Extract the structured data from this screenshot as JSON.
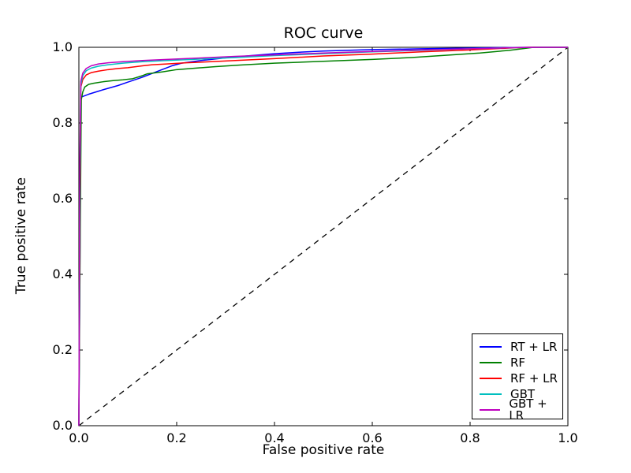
{
  "chart_data": {
    "type": "line",
    "title": "ROC curve",
    "xlabel": "False positive rate",
    "ylabel": "True positive rate",
    "xlim": [
      0.0,
      1.0
    ],
    "ylim": [
      0.0,
      1.0
    ],
    "grid": false,
    "legend_position": "lower right",
    "xticks": {
      "values": [
        0.0,
        0.2,
        0.4,
        0.6,
        0.8,
        1.0
      ],
      "labels": [
        "0.0",
        "0.2",
        "0.4",
        "0.6",
        "0.8",
        "1.0"
      ]
    },
    "yticks": {
      "values": [
        0.0,
        0.2,
        0.4,
        0.6,
        0.8,
        1.0
      ],
      "labels": [
        "0.0",
        "0.2",
        "0.4",
        "0.6",
        "0.8",
        "1.0"
      ]
    },
    "reference_line": {
      "name": "chance diagonal",
      "style": "dashed",
      "color": "#000000",
      "points": [
        [
          0.0,
          0.0
        ],
        [
          1.0,
          1.0
        ]
      ]
    },
    "series": [
      {
        "name": "RT + LR",
        "color": "#0000ff",
        "points": [
          [
            0,
            0
          ],
          [
            0.003,
            0.62
          ],
          [
            0.004,
            0.868
          ],
          [
            0.02,
            0.876
          ],
          [
            0.05,
            0.888
          ],
          [
            0.08,
            0.899
          ],
          [
            0.1,
            0.908
          ],
          [
            0.13,
            0.921
          ],
          [
            0.16,
            0.936
          ],
          [
            0.19,
            0.951
          ],
          [
            0.21,
            0.958
          ],
          [
            0.25,
            0.965
          ],
          [
            0.3,
            0.972
          ],
          [
            0.35,
            0.978
          ],
          [
            0.4,
            0.983
          ],
          [
            0.45,
            0.987
          ],
          [
            0.5,
            0.99
          ],
          [
            0.6,
            0.994
          ],
          [
            0.7,
            0.996
          ],
          [
            0.8,
            0.998
          ],
          [
            0.9,
            0.9997
          ],
          [
            0.93,
            1.0
          ],
          [
            1.0,
            1.0
          ]
        ]
      },
      {
        "name": "RF",
        "color": "#008000",
        "points": [
          [
            0,
            0
          ],
          [
            0.003,
            0.55
          ],
          [
            0.005,
            0.862
          ],
          [
            0.008,
            0.882
          ],
          [
            0.012,
            0.895
          ],
          [
            0.02,
            0.902
          ],
          [
            0.03,
            0.905
          ],
          [
            0.05,
            0.909
          ],
          [
            0.07,
            0.912
          ],
          [
            0.09,
            0.914
          ],
          [
            0.11,
            0.917
          ],
          [
            0.13,
            0.925
          ],
          [
            0.14,
            0.93
          ],
          [
            0.17,
            0.935
          ],
          [
            0.2,
            0.941
          ],
          [
            0.24,
            0.945
          ],
          [
            0.28,
            0.949
          ],
          [
            0.33,
            0.953
          ],
          [
            0.4,
            0.958
          ],
          [
            0.5,
            0.963
          ],
          [
            0.6,
            0.968
          ],
          [
            0.68,
            0.973
          ],
          [
            0.75,
            0.979
          ],
          [
            0.82,
            0.985
          ],
          [
            0.88,
            0.992
          ],
          [
            0.93,
            1.0
          ],
          [
            1.0,
            1.0
          ]
        ]
      },
      {
        "name": "RF + LR",
        "color": "#ff0000",
        "points": [
          [
            0,
            0
          ],
          [
            0.002,
            0.6
          ],
          [
            0.004,
            0.895
          ],
          [
            0.008,
            0.915
          ],
          [
            0.015,
            0.927
          ],
          [
            0.025,
            0.933
          ],
          [
            0.04,
            0.937
          ],
          [
            0.06,
            0.941
          ],
          [
            0.08,
            0.944
          ],
          [
            0.1,
            0.946
          ],
          [
            0.13,
            0.951
          ],
          [
            0.15,
            0.954
          ],
          [
            0.18,
            0.956
          ],
          [
            0.22,
            0.959
          ],
          [
            0.27,
            0.962
          ],
          [
            0.32,
            0.965
          ],
          [
            0.4,
            0.97
          ],
          [
            0.5,
            0.977
          ],
          [
            0.6,
            0.982
          ],
          [
            0.7,
            0.988
          ],
          [
            0.8,
            0.993
          ],
          [
            0.88,
            0.998
          ],
          [
            0.92,
            1.0
          ],
          [
            1.0,
            1.0
          ]
        ]
      },
      {
        "name": "GBT",
        "color": "#00bfbf",
        "points": [
          [
            0,
            0
          ],
          [
            0.002,
            0.65
          ],
          [
            0.004,
            0.9
          ],
          [
            0.008,
            0.925
          ],
          [
            0.015,
            0.938
          ],
          [
            0.025,
            0.945
          ],
          [
            0.04,
            0.95
          ],
          [
            0.06,
            0.954
          ],
          [
            0.09,
            0.958
          ],
          [
            0.13,
            0.962
          ],
          [
            0.18,
            0.965
          ],
          [
            0.25,
            0.969
          ],
          [
            0.32,
            0.973
          ],
          [
            0.4,
            0.978
          ],
          [
            0.5,
            0.983
          ],
          [
            0.6,
            0.988
          ],
          [
            0.7,
            0.992
          ],
          [
            0.8,
            0.996
          ],
          [
            0.9,
            0.9993
          ],
          [
            0.95,
            1.0
          ],
          [
            1.0,
            1.0
          ]
        ]
      },
      {
        "name": "GBT + LR",
        "color": "#bf00bf",
        "points": [
          [
            0,
            0
          ],
          [
            0.002,
            0.7
          ],
          [
            0.004,
            0.91
          ],
          [
            0.008,
            0.932
          ],
          [
            0.015,
            0.944
          ],
          [
            0.025,
            0.951
          ],
          [
            0.04,
            0.956
          ],
          [
            0.06,
            0.959
          ],
          [
            0.09,
            0.962
          ],
          [
            0.13,
            0.965
          ],
          [
            0.18,
            0.968
          ],
          [
            0.25,
            0.972
          ],
          [
            0.32,
            0.976
          ],
          [
            0.4,
            0.98
          ],
          [
            0.5,
            0.985
          ],
          [
            0.6,
            0.989
          ],
          [
            0.7,
            0.993
          ],
          [
            0.8,
            0.996
          ],
          [
            0.9,
            0.9995
          ],
          [
            0.95,
            1.0
          ],
          [
            1.0,
            1.0
          ]
        ]
      }
    ]
  }
}
